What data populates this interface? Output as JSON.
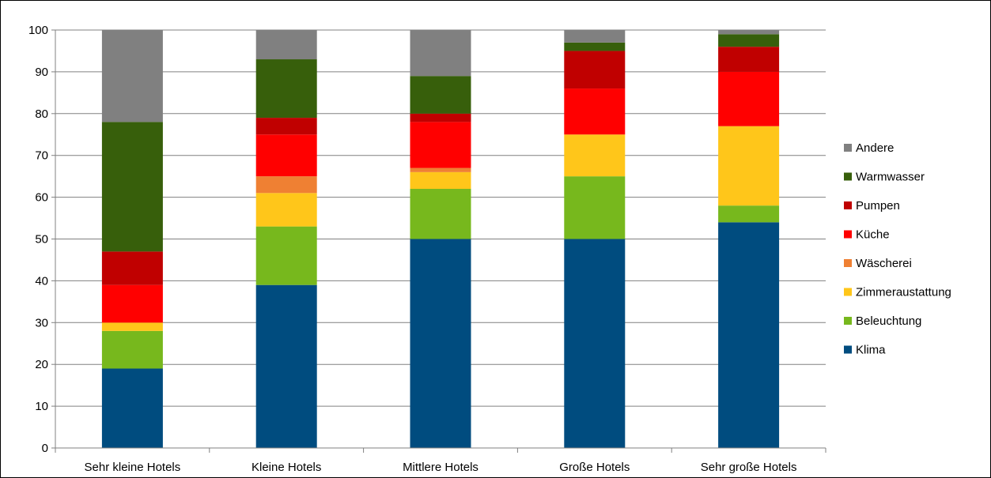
{
  "chart_data": {
    "type": "bar",
    "stacked": true,
    "title": "",
    "xlabel": "",
    "ylabel": "",
    "ylim": [
      0,
      100
    ],
    "yticks": [
      0,
      10,
      20,
      30,
      40,
      50,
      60,
      70,
      80,
      90,
      100
    ],
    "grid": true,
    "legend_position": "right",
    "categories": [
      "Sehr kleine Hotels",
      "Kleine Hotels",
      "Mittlere Hotels",
      "Große Hotels",
      "Sehr große Hotels"
    ],
    "series": [
      {
        "name": "Klima",
        "color": "#004c7f",
        "values": [
          19,
          39,
          50,
          50,
          54
        ]
      },
      {
        "name": "Beleuchtung",
        "color": "#77b81d",
        "values": [
          9,
          14,
          12,
          15,
          4
        ]
      },
      {
        "name": "Zimmeraustattung",
        "color": "#ffc61a",
        "values": [
          2,
          8,
          4,
          10,
          19
        ]
      },
      {
        "name": "Wäscherei",
        "color": "#ef8033",
        "values": [
          0,
          4,
          1,
          0,
          0
        ]
      },
      {
        "name": "Küche",
        "color": "#ff0000",
        "values": [
          9,
          10,
          11,
          11,
          13
        ]
      },
      {
        "name": "Pumpen",
        "color": "#c00000",
        "values": [
          8,
          4,
          2,
          9,
          6
        ]
      },
      {
        "name": "Warmwasser",
        "color": "#375f0b",
        "values": [
          31,
          14,
          9,
          2,
          3
        ]
      },
      {
        "name": "Andere",
        "color": "#808080",
        "values": [
          22,
          7,
          11,
          3,
          1
        ]
      }
    ]
  }
}
